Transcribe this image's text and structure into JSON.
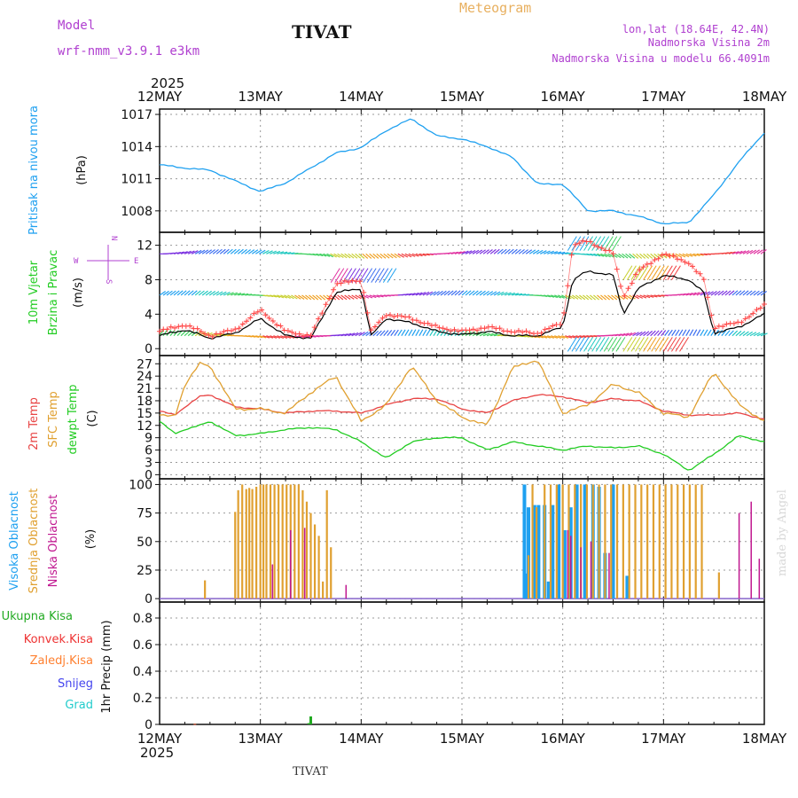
{
  "header": {
    "model_label": "Model",
    "model_name": "wrf-nmm_v3.9.1 e3km",
    "station": "TIVAT",
    "chart_kind": "Meteogram",
    "lonlat": "lon,lat (18.64E, 42.4N)",
    "elevation": "Nadmorska Visina 2m",
    "model_elevation": "Nadmorska Visina u modelu 66.4091m"
  },
  "footer": {
    "station": "TIVAT",
    "credit": "made by Angel"
  },
  "time_axis": {
    "year": "2025",
    "ticks": [
      "12MAY",
      "13MAY",
      "14MAY",
      "15MAY",
      "16MAY",
      "17MAY",
      "18MAY"
    ]
  },
  "colors": {
    "pressure": "#1ea0f0",
    "wind_label": "#22cc22",
    "wind_speed": "#ff4444",
    "wind_mean": "#000000",
    "temp2m": "#e84444",
    "sfc_temp": "#e0a030",
    "dewpoint": "#22cc22",
    "cloud_high": "#1ea0f0",
    "cloud_mid": "#e0a030",
    "cloud_low": "#c01890",
    "precip_total": "#22aa22",
    "precip_conv": "#ee3333",
    "precip_strat": "#ff8030",
    "snow": "#4444ee",
    "hail": "#22cccc",
    "header_purple": "#b040d0",
    "header_orange": "#e8a040"
  },
  "chart_data": [
    {
      "type": "line",
      "id": "pressure",
      "ylabel_main": "Pritisak na nivou mora",
      "ylabel_unit": "(hPa)",
      "yticks": [
        1008,
        1011,
        1014,
        1017
      ],
      "ylim": [
        1006,
        1017.5
      ],
      "x": [
        0,
        0.25,
        0.5,
        0.75,
        1.0,
        1.25,
        1.5,
        1.75,
        2.0,
        2.25,
        2.5,
        2.75,
        3.0,
        3.25,
        3.5,
        3.75,
        4.0,
        4.25,
        4.5,
        4.75,
        5.0,
        5.25,
        5.5,
        5.75,
        6.0
      ],
      "series": [
        {
          "name": "MSLP",
          "values": [
            1012.3,
            1012.0,
            1011.8,
            1010.8,
            1009.8,
            1010.6,
            1012.0,
            1013.4,
            1013.9,
            1015.5,
            1016.6,
            1015.0,
            1014.7,
            1014.0,
            1013.0,
            1010.5,
            1010.5,
            1008.0,
            1008.0,
            1007.5,
            1006.8,
            1006.9,
            1009.5,
            1012.6,
            1015.3
          ]
        }
      ]
    },
    {
      "type": "line",
      "id": "wind",
      "ylabel_main": "10m Vjetar",
      "ylabel_sub": "Brzina i Pravac",
      "ylabel_unit": "(m/s)",
      "compass": {
        "n": "N",
        "w": "W",
        "e": "E",
        "s": "S"
      },
      "yticks": [
        0,
        4,
        8,
        12
      ],
      "ylim": [
        -0.8,
        13.5
      ],
      "x": [
        0,
        0.25,
        0.5,
        0.75,
        1.0,
        1.25,
        1.5,
        1.75,
        2.0,
        2.1,
        2.25,
        2.5,
        2.75,
        3.0,
        3.25,
        3.5,
        3.75,
        4.0,
        4.1,
        4.25,
        4.5,
        4.6,
        4.75,
        5.0,
        5.25,
        5.4,
        5.5,
        5.75,
        6.0
      ],
      "series": [
        {
          "name": "Brzina (udari)",
          "values": [
            2,
            2.8,
            1.5,
            2.2,
            4.5,
            2.0,
            1.5,
            7.5,
            8.0,
            2.0,
            4.0,
            3.5,
            2.5,
            2.0,
            2.5,
            2.0,
            1.8,
            3.0,
            12.0,
            12.5,
            11.0,
            6.0,
            9.0,
            11.0,
            10.0,
            8.0,
            2.5,
            3.0,
            5.0
          ]
        },
        {
          "name": "Srednja brzina",
          "values": [
            1.5,
            2.2,
            1.2,
            1.8,
            3.5,
            1.5,
            1.2,
            6.5,
            7.0,
            1.5,
            3.5,
            3.0,
            2.0,
            1.6,
            2.0,
            1.5,
            1.5,
            2.5,
            8.0,
            9.0,
            8.5,
            4.0,
            7.0,
            8.5,
            8.0,
            6.5,
            1.8,
            2.5,
            4.0
          ]
        }
      ],
      "direction_bands": [
        11,
        6.2,
        1.5
      ]
    },
    {
      "type": "line",
      "id": "temperature",
      "ylabel_a": "2m Temp",
      "ylabel_b": "SFC Temp",
      "ylabel_c": "dewpt Temp",
      "ylabel_unit": "(C)",
      "yticks": [
        0,
        3,
        6,
        9,
        12,
        15,
        18,
        21,
        24,
        27
      ],
      "ylim": [
        -1,
        29
      ],
      "x": [
        0,
        0.15,
        0.25,
        0.4,
        0.5,
        0.75,
        1.0,
        1.25,
        1.5,
        1.75,
        2.0,
        2.25,
        2.5,
        2.75,
        3.0,
        3.25,
        3.5,
        3.75,
        4.0,
        4.25,
        4.5,
        4.75,
        5.0,
        5.25,
        5.5,
        5.75,
        6.0
      ],
      "series": [
        {
          "name": "2m Temp",
          "values": [
            15.5,
            14.5,
            16.5,
            19,
            19.5,
            16.5,
            16,
            15,
            15.5,
            15.5,
            15,
            17,
            18.5,
            18.5,
            16,
            15,
            18,
            19.5,
            19,
            17.5,
            18.5,
            18,
            15.5,
            14.5,
            14.5,
            15,
            13.5
          ]
        },
        {
          "name": "SFC Temp",
          "values": [
            14.5,
            14,
            22,
            27,
            26.5,
            16,
            16,
            15,
            20,
            24,
            13,
            17,
            26.5,
            18,
            14,
            12,
            26,
            28,
            15,
            17,
            22,
            20,
            15,
            14,
            25,
            17,
            13
          ]
        },
        {
          "name": "dewpt Temp",
          "values": [
            13,
            10,
            11,
            12,
            13,
            9.5,
            10,
            11,
            11.5,
            11,
            8,
            4,
            8,
            9,
            9,
            6,
            8,
            7,
            6,
            7,
            6.5,
            7,
            5,
            1,
            5,
            9.5,
            8
          ]
        }
      ]
    },
    {
      "type": "bar",
      "id": "clouds",
      "ylabel_a": "Visoka Oblacnost",
      "ylabel_b": "Srednja Oblacnost",
      "ylabel_c": "Niska Oblacnost",
      "ylabel_unit": "(%)",
      "yticks": [
        0,
        25,
        50,
        75,
        100
      ],
      "ylim": [
        -3,
        105
      ],
      "series": [
        {
          "name": "Visoka",
          "x": [
            3.62,
            3.64,
            3.66,
            3.72,
            3.76,
            3.82,
            3.86,
            3.9,
            3.96,
            4.02,
            4.08,
            4.14,
            4.22,
            4.3,
            4.36,
            4.42,
            4.5,
            4.64
          ],
          "values": [
            100,
            22,
            80,
            82,
            82,
            82,
            15,
            82,
            100,
            60,
            80,
            100,
            100,
            100,
            98,
            40,
            100,
            20
          ]
        },
        {
          "name": "Srednja",
          "x": [
            0.45,
            0.75,
            0.78,
            0.82,
            0.86,
            0.89,
            0.92,
            0.96,
            1.0,
            1.03,
            1.06,
            1.1,
            1.14,
            1.18,
            1.22,
            1.26,
            1.3,
            1.34,
            1.38,
            1.42,
            1.46,
            1.5,
            1.54,
            1.58,
            1.62,
            1.66,
            1.7,
            3.66,
            3.7,
            3.74,
            3.82,
            3.88,
            3.94,
            4.0,
            4.06,
            4.12,
            4.18,
            4.24,
            4.3,
            4.36,
            4.42,
            4.48,
            4.54,
            4.6,
            4.66,
            4.72,
            4.78,
            4.84,
            4.9,
            4.96,
            5.02,
            5.08,
            5.14,
            5.2,
            5.26,
            5.32,
            5.38,
            5.55
          ],
          "values": [
            16,
            76,
            95,
            100,
            96,
            97,
            96,
            98,
            100,
            100,
            100,
            100,
            100,
            100,
            100,
            100,
            100,
            100,
            100,
            95,
            85,
            75,
            65,
            55,
            15,
            95,
            45,
            38,
            100,
            80,
            100,
            100,
            100,
            100,
            100,
            100,
            100,
            100,
            100,
            100,
            100,
            100,
            100,
            100,
            100,
            100,
            100,
            100,
            100,
            100,
            100,
            100,
            100,
            100,
            100,
            100,
            100,
            23
          ]
        },
        {
          "name": "Niska",
          "x": [
            1.12,
            1.3,
            1.44,
            1.85,
            4.05,
            4.08,
            4.18,
            4.28,
            4.46,
            5.75,
            5.87,
            5.95
          ],
          "values": [
            30,
            60,
            62,
            12,
            60,
            55,
            45,
            50,
            40,
            75,
            85,
            35
          ]
        }
      ]
    },
    {
      "type": "bar",
      "id": "precip",
      "ylabel_main": "1hr Precip (mm)",
      "legend": [
        "Ukupna Kisa",
        "Konvek.Kisa",
        "Zaledj.Kisa",
        "Snijeg",
        "Grad"
      ],
      "yticks": [
        0,
        0.2,
        0.4,
        0.6,
        0.8
      ],
      "ylim": [
        0,
        0.92
      ],
      "series": [
        {
          "name": "Ukupna Kisa",
          "x": [
            0.35,
            1.48,
            1.5
          ],
          "values": [
            0.005,
            0.01,
            0.06
          ]
        },
        {
          "name": "Konvek.Kisa",
          "x": [
            0.35
          ],
          "values": [
            0.004
          ]
        }
      ]
    }
  ]
}
